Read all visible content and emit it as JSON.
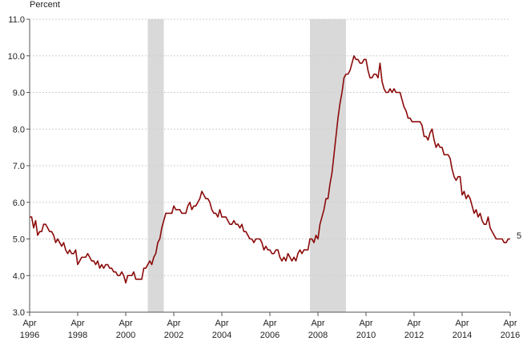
{
  "chart_data": {
    "type": "line",
    "ylabel": "Percent",
    "ylim": [
      3.0,
      11.0
    ],
    "y_ticks": [
      "3.0",
      "4.0",
      "5.0",
      "6.0",
      "7.0",
      "8.0",
      "9.0",
      "10.0",
      "11.0"
    ],
    "x_ticks": [
      {
        "month": "Apr",
        "year": "1996"
      },
      {
        "month": "Apr",
        "year": "1998"
      },
      {
        "month": "Apr",
        "year": "2000"
      },
      {
        "month": "Apr",
        "year": "2002"
      },
      {
        "month": "Apr",
        "year": "2004"
      },
      {
        "month": "Apr",
        "year": "2006"
      },
      {
        "month": "Apr",
        "year": "2008"
      },
      {
        "month": "Apr",
        "year": "2010"
      },
      {
        "month": "Apr",
        "year": "2012"
      },
      {
        "month": "Apr",
        "year": "2014"
      },
      {
        "month": "Apr",
        "year": "2016"
      }
    ],
    "grid": true,
    "recessions": [
      {
        "start": "2001-03",
        "end": "2001-11"
      },
      {
        "start": "2007-12",
        "end": "2009-06"
      }
    ],
    "end_label": "5",
    "series": [
      {
        "color": "#8b0a0a",
        "x": [
          "1996-04",
          "1996-05",
          "1996-06",
          "1996-07",
          "1996-08",
          "1996-09",
          "1996-10",
          "1996-11",
          "1996-12",
          "1997-01",
          "1997-02",
          "1997-03",
          "1997-04",
          "1997-05",
          "1997-06",
          "1997-07",
          "1997-08",
          "1997-09",
          "1997-10",
          "1997-11",
          "1997-12",
          "1998-01",
          "1998-02",
          "1998-03",
          "1998-04",
          "1998-05",
          "1998-06",
          "1998-07",
          "1998-08",
          "1998-09",
          "1998-10",
          "1998-11",
          "1998-12",
          "1999-01",
          "1999-02",
          "1999-03",
          "1999-04",
          "1999-05",
          "1999-06",
          "1999-07",
          "1999-08",
          "1999-09",
          "1999-10",
          "1999-11",
          "1999-12",
          "2000-01",
          "2000-02",
          "2000-03",
          "2000-04",
          "2000-05",
          "2000-06",
          "2000-07",
          "2000-08",
          "2000-09",
          "2000-10",
          "2000-11",
          "2000-12",
          "2001-01",
          "2001-02",
          "2001-03",
          "2001-04",
          "2001-05",
          "2001-06",
          "2001-07",
          "2001-08",
          "2001-09",
          "2001-10",
          "2001-11",
          "2001-12",
          "2002-01",
          "2002-02",
          "2002-03",
          "2002-04",
          "2002-05",
          "2002-06",
          "2002-07",
          "2002-08",
          "2002-09",
          "2002-10",
          "2002-11",
          "2002-12",
          "2003-01",
          "2003-02",
          "2003-03",
          "2003-04",
          "2003-05",
          "2003-06",
          "2003-07",
          "2003-08",
          "2003-09",
          "2003-10",
          "2003-11",
          "2003-12",
          "2004-01",
          "2004-02",
          "2004-03",
          "2004-04",
          "2004-05",
          "2004-06",
          "2004-07",
          "2004-08",
          "2004-09",
          "2004-10",
          "2004-11",
          "2004-12",
          "2005-01",
          "2005-02",
          "2005-03",
          "2005-04",
          "2005-05",
          "2005-06",
          "2005-07",
          "2005-08",
          "2005-09",
          "2005-10",
          "2005-11",
          "2005-12",
          "2006-01",
          "2006-02",
          "2006-03",
          "2006-04",
          "2006-05",
          "2006-06",
          "2006-07",
          "2006-08",
          "2006-09",
          "2006-10",
          "2006-11",
          "2006-12",
          "2007-01",
          "2007-02",
          "2007-03",
          "2007-04",
          "2007-05",
          "2007-06",
          "2007-07",
          "2007-08",
          "2007-09",
          "2007-10",
          "2007-11",
          "2007-12",
          "2008-01",
          "2008-02",
          "2008-03",
          "2008-04",
          "2008-05",
          "2008-06",
          "2008-07",
          "2008-08",
          "2008-09",
          "2008-10",
          "2008-11",
          "2008-12",
          "2009-01",
          "2009-02",
          "2009-03",
          "2009-04",
          "2009-05",
          "2009-06",
          "2009-07",
          "2009-08",
          "2009-09",
          "2009-10",
          "2009-11",
          "2009-12",
          "2010-01",
          "2010-02",
          "2010-03",
          "2010-04",
          "2010-05",
          "2010-06",
          "2010-07",
          "2010-08",
          "2010-09",
          "2010-10",
          "2010-11",
          "2010-12",
          "2011-01",
          "2011-02",
          "2011-03",
          "2011-04",
          "2011-05",
          "2011-06",
          "2011-07",
          "2011-08",
          "2011-09",
          "2011-10",
          "2011-11",
          "2011-12",
          "2012-01",
          "2012-02",
          "2012-03",
          "2012-04",
          "2012-05",
          "2012-06",
          "2012-07",
          "2012-08",
          "2012-09",
          "2012-10",
          "2012-11",
          "2012-12",
          "2013-01",
          "2013-02",
          "2013-03",
          "2013-04",
          "2013-05",
          "2013-06",
          "2013-07",
          "2013-08",
          "2013-09",
          "2013-10",
          "2013-11",
          "2013-12",
          "2014-01",
          "2014-02",
          "2014-03",
          "2014-04",
          "2014-05",
          "2014-06",
          "2014-07",
          "2014-08",
          "2014-09",
          "2014-10",
          "2014-11",
          "2014-12",
          "2015-01",
          "2015-02",
          "2015-03",
          "2015-04",
          "2015-05",
          "2015-06",
          "2015-07",
          "2015-08",
          "2015-09",
          "2015-10",
          "2015-11",
          "2015-12",
          "2016-01",
          "2016-02",
          "2016-03",
          "2016-04"
        ],
        "values": [
          5.6,
          5.6,
          5.3,
          5.5,
          5.1,
          5.2,
          5.2,
          5.4,
          5.4,
          5.3,
          5.2,
          5.2,
          5.1,
          4.9,
          5.0,
          4.9,
          4.8,
          4.9,
          4.7,
          4.6,
          4.7,
          4.6,
          4.6,
          4.7,
          4.3,
          4.4,
          4.5,
          4.5,
          4.5,
          4.6,
          4.5,
          4.4,
          4.4,
          4.3,
          4.4,
          4.2,
          4.3,
          4.2,
          4.3,
          4.3,
          4.2,
          4.2,
          4.1,
          4.1,
          4.0,
          4.0,
          4.1,
          4.0,
          3.8,
          4.0,
          4.0,
          4.0,
          4.1,
          3.9,
          3.9,
          3.9,
          3.9,
          4.2,
          4.2,
          4.3,
          4.4,
          4.3,
          4.5,
          4.6,
          4.9,
          5.0,
          5.3,
          5.5,
          5.7,
          5.7,
          5.7,
          5.7,
          5.9,
          5.8,
          5.8,
          5.8,
          5.7,
          5.7,
          5.7,
          5.9,
          6.0,
          5.8,
          5.9,
          5.9,
          6.0,
          6.1,
          6.3,
          6.2,
          6.1,
          6.1,
          6.0,
          5.8,
          5.7,
          5.7,
          5.6,
          5.8,
          5.6,
          5.6,
          5.6,
          5.5,
          5.4,
          5.4,
          5.5,
          5.4,
          5.4,
          5.3,
          5.4,
          5.2,
          5.2,
          5.1,
          5.0,
          5.0,
          4.9,
          5.0,
          5.0,
          5.0,
          4.9,
          4.7,
          4.8,
          4.7,
          4.7,
          4.6,
          4.6,
          4.7,
          4.7,
          4.5,
          4.4,
          4.5,
          4.4,
          4.6,
          4.5,
          4.4,
          4.5,
          4.4,
          4.6,
          4.7,
          4.6,
          4.7,
          4.7,
          4.7,
          5.0,
          5.0,
          4.9,
          5.1,
          5.0,
          5.4,
          5.6,
          5.8,
          6.1,
          6.1,
          6.5,
          6.8,
          7.3,
          7.8,
          8.3,
          8.7,
          9.0,
          9.4,
          9.5,
          9.5,
          9.6,
          9.8,
          10.0,
          9.9,
          9.9,
          9.8,
          9.8,
          9.9,
          9.9,
          9.6,
          9.4,
          9.4,
          9.5,
          9.5,
          9.4,
          9.8,
          9.3,
          9.1,
          9.0,
          9.0,
          9.1,
          9.0,
          9.1,
          9.0,
          9.0,
          9.0,
          8.8,
          8.6,
          8.5,
          8.3,
          8.3,
          8.2,
          8.2,
          8.2,
          8.2,
          8.2,
          8.1,
          7.8,
          7.8,
          7.7,
          7.9,
          8.0,
          7.7,
          7.5,
          7.6,
          7.5,
          7.5,
          7.3,
          7.3,
          7.3,
          7.2,
          6.9,
          6.7,
          6.6,
          6.7,
          6.7,
          6.2,
          6.3,
          6.1,
          6.2,
          6.1,
          5.9,
          5.7,
          5.8,
          5.6,
          5.7,
          5.5,
          5.4,
          5.4,
          5.6,
          5.3,
          5.2,
          5.1,
          5.0,
          5.0,
          5.0,
          5.0,
          4.9,
          4.9,
          5.0,
          5.0
        ]
      }
    ]
  }
}
